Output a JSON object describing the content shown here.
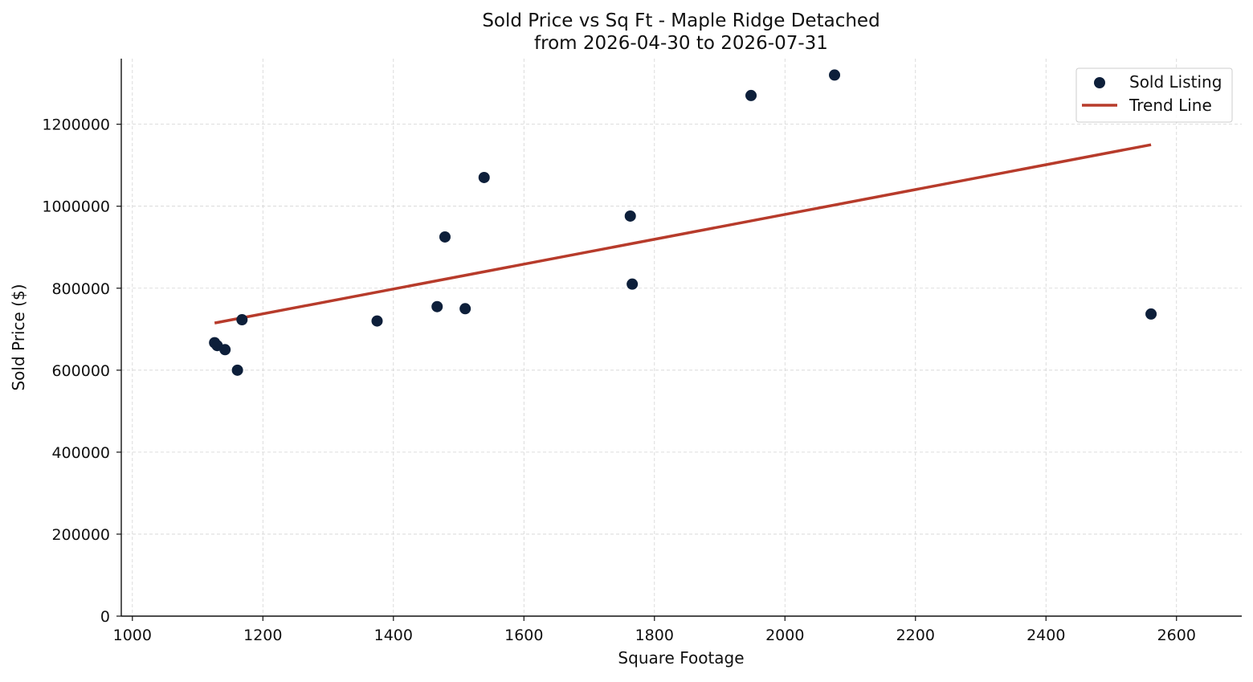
{
  "chart_data": {
    "type": "scatter",
    "title": "Sold Price vs Sq Ft - Maple Ridge Detached",
    "subtitle": "from 2026-04-30 to 2026-07-31",
    "xlabel": "Square Footage",
    "ylabel": "Sold Price ($)",
    "xlim": [
      983,
      2700
    ],
    "ylim": [
      0,
      1360000
    ],
    "x_ticks": [
      1000,
      1200,
      1400,
      1600,
      1800,
      2000,
      2200,
      2400,
      2600
    ],
    "x_tick_labels": [
      "1000",
      "1200",
      "1400",
      "1600",
      "1800",
      "2000",
      "2200",
      "2400",
      "2600"
    ],
    "y_ticks": [
      0,
      200000,
      400000,
      600000,
      800000,
      1000000,
      1200000
    ],
    "y_tick_labels": [
      "0",
      "200000",
      "400000",
      "600000",
      "800000",
      "1000000",
      "1200000"
    ],
    "grid": true,
    "legend_position": "top-right",
    "series": [
      {
        "name": "Sold Listing",
        "kind": "scatter",
        "color": "#0d1f3a",
        "x": [
          1126,
          1130,
          1142,
          1161,
          1168,
          1375,
          1467,
          1479,
          1510,
          1539,
          1763,
          1766,
          1948,
          2076,
          2561
        ],
        "y": [
          667000,
          660000,
          650000,
          600000,
          723000,
          720000,
          755000,
          925000,
          750000,
          1070000,
          976000,
          810000,
          1270000,
          1320000,
          737000
        ]
      },
      {
        "name": "Trend Line",
        "kind": "line",
        "color": "#b73b2b",
        "x": [
          1126,
          2561
        ],
        "y": [
          715000,
          1150000
        ]
      }
    ]
  }
}
